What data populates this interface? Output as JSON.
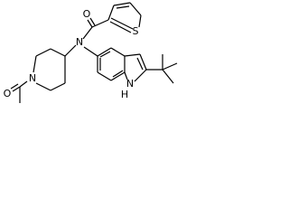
{
  "atoms": [
    {
      "label": "O"
    },
    {
      "label": "S"
    },
    {
      "label": "N"
    },
    {
      "label": "N"
    },
    {
      "label": "O"
    },
    {
      "label": "N"
    },
    {
      "label": "H"
    }
  ]
}
